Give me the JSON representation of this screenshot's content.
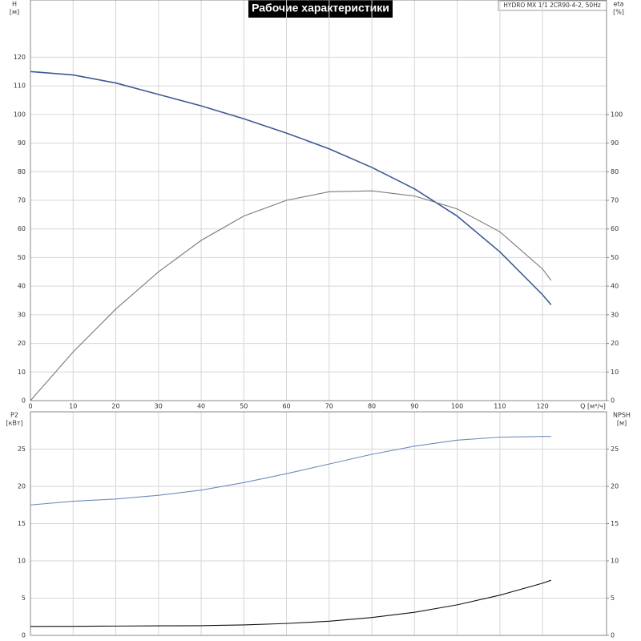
{
  "chart_data": [
    {
      "type": "line",
      "title": "Рабочие характеристики",
      "subtitle": "HYDRO MX 1/1 2CR90-4-2, 50Hz",
      "y_label": "H",
      "y_unit": "[м]",
      "y2_label": "eta",
      "y2_unit": "[%]",
      "x_label": "Q [м³/ч]",
      "x": [
        0,
        10,
        20,
        30,
        40,
        50,
        60,
        70,
        80,
        90,
        100,
        110,
        120,
        122
      ],
      "xlim": [
        0,
        135
      ],
      "xticks": [
        0,
        10,
        20,
        30,
        40,
        50,
        60,
        70,
        80,
        90,
        100,
        110,
        120
      ],
      "ylim": [
        0,
        140
      ],
      "yticks": [
        0,
        10,
        20,
        30,
        40,
        50,
        60,
        70,
        80,
        90,
        100,
        110,
        120
      ],
      "y2lim": [
        0,
        140
      ],
      "y2ticks": [
        0,
        10,
        20,
        30,
        40,
        50,
        60,
        70,
        80,
        90,
        100
      ],
      "grid": true,
      "series": [
        {
          "name": "H",
          "color": "#3b5a96",
          "values": [
            115,
            113.8,
            111,
            107,
            103,
            98.5,
            93.5,
            88,
            81.5,
            74,
            64.5,
            52,
            37,
            33.5
          ]
        },
        {
          "name": "eta",
          "color": "#7a7a7a",
          "axis": "y2",
          "values": [
            0,
            17,
            32,
            45,
            56,
            64.5,
            70,
            73,
            73.3,
            71.5,
            67,
            59,
            46,
            42
          ]
        }
      ]
    },
    {
      "type": "line",
      "y_label": "P2",
      "y_unit": "[кВт]",
      "y2_label": "NPSH",
      "y2_unit": "[м]",
      "x": [
        0,
        10,
        20,
        30,
        40,
        50,
        60,
        70,
        80,
        90,
        100,
        110,
        120,
        122
      ],
      "xlim": [
        0,
        135
      ],
      "ylim": [
        0,
        30
      ],
      "yticks": [
        0,
        5,
        10,
        15,
        20,
        25
      ],
      "y2lim": [
        0,
        30
      ],
      "y2ticks": [
        0,
        5,
        10,
        15,
        20,
        25
      ],
      "grid": true,
      "series": [
        {
          "name": "P2",
          "color": "#6f8bbf",
          "values": [
            17.5,
            18,
            18.3,
            18.8,
            19.5,
            20.5,
            21.7,
            23,
            24.3,
            25.4,
            26.2,
            26.6,
            26.7,
            26.7
          ]
        },
        {
          "name": "NPSH",
          "color": "#111111",
          "axis": "y2",
          "values": [
            1.2,
            1.22,
            1.25,
            1.28,
            1.3,
            1.4,
            1.6,
            1.9,
            2.4,
            3.1,
            4.1,
            5.4,
            7,
            7.4
          ]
        }
      ]
    }
  ]
}
